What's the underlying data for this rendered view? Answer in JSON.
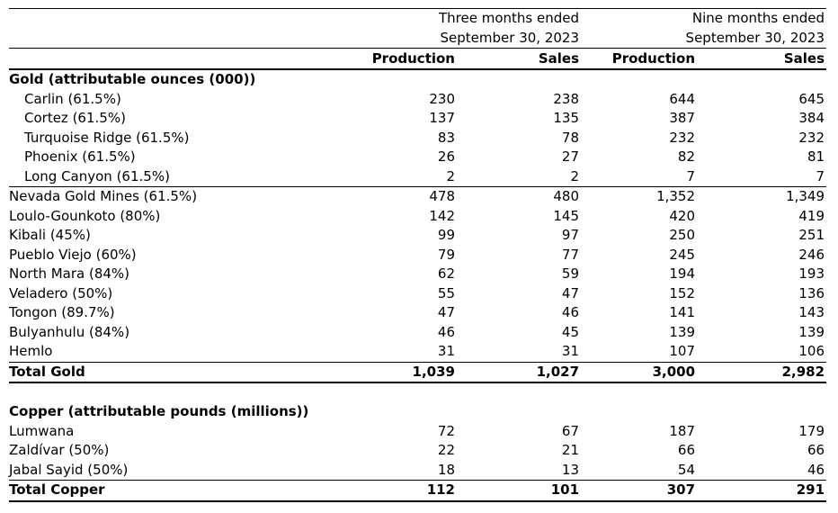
{
  "document": {
    "colors": {
      "text": "#000000",
      "background": "#ffffff",
      "rule": "#000000"
    },
    "period_groups": [
      {
        "line1": "Three months ended",
        "line2": "September 30, 2023"
      },
      {
        "line1": "Nine months ended",
        "line2": "September 30, 2023"
      }
    ],
    "column_headers": [
      "Production",
      "Sales",
      "Production",
      "Sales"
    ],
    "sections": [
      {
        "header": "Gold (attributable ounces (000))",
        "rows": [
          {
            "label": "Carlin (61.5%)",
            "indent": true,
            "values": [
              "230",
              "238",
              "644",
              "645"
            ]
          },
          {
            "label": "Cortez (61.5%)",
            "indent": true,
            "values": [
              "137",
              "135",
              "387",
              "384"
            ]
          },
          {
            "label": "Turquoise Ridge (61.5%)",
            "indent": true,
            "values": [
              "83",
              "78",
              "232",
              "232"
            ]
          },
          {
            "label": "Phoenix (61.5%)",
            "indent": true,
            "values": [
              "26",
              "27",
              "82",
              "81"
            ]
          },
          {
            "label": "Long Canyon (61.5%)",
            "indent": true,
            "values": [
              "2",
              "2",
              "7",
              "7"
            ]
          },
          {
            "label": "Nevada Gold Mines (61.5%)",
            "rule_above": true,
            "values": [
              "478",
              "480",
              "1,352",
              "1,349"
            ]
          },
          {
            "label": "Loulo-Gounkoto (80%)",
            "values": [
              "142",
              "145",
              "420",
              "419"
            ]
          },
          {
            "label": "Kibali (45%)",
            "values": [
              "99",
              "97",
              "250",
              "251"
            ]
          },
          {
            "label": "Pueblo Viejo (60%)",
            "values": [
              "79",
              "77",
              "245",
              "246"
            ]
          },
          {
            "label": "North Mara (84%)",
            "values": [
              "62",
              "59",
              "194",
              "193"
            ]
          },
          {
            "label": "Veladero (50%)",
            "values": [
              "55",
              "47",
              "152",
              "136"
            ]
          },
          {
            "label": "Tongon (89.7%)",
            "values": [
              "47",
              "46",
              "141",
              "143"
            ]
          },
          {
            "label": "Bulyanhulu (84%)",
            "values": [
              "46",
              "45",
              "139",
              "139"
            ]
          },
          {
            "label": "Hemlo",
            "values": [
              "31",
              "31",
              "107",
              "106"
            ]
          }
        ],
        "total": {
          "label": "Total Gold",
          "values": [
            "1,039",
            "1,027",
            "3,000",
            "2,982"
          ]
        }
      },
      {
        "header": "Copper (attributable pounds (millions))",
        "rows": [
          {
            "label": "Lumwana",
            "values": [
              "72",
              "67",
              "187",
              "179"
            ]
          },
          {
            "label": "Zaldívar (50%)",
            "values": [
              "22",
              "21",
              "66",
              "66"
            ]
          },
          {
            "label": "Jabal Sayid (50%)",
            "values": [
              "18",
              "13",
              "54",
              "46"
            ]
          }
        ],
        "total": {
          "label": "Total Copper",
          "values": [
            "112",
            "101",
            "307",
            "291"
          ]
        }
      }
    ]
  }
}
